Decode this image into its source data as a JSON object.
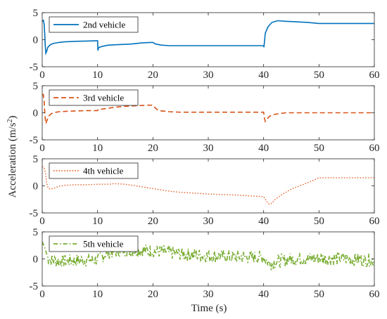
{
  "figure": {
    "xlabel": "Time (s)",
    "ylabel_main": "Acceleration (m/s",
    "ylabel_sup": "2",
    "ylabel_end": ")"
  },
  "chart_data": [
    {
      "type": "line",
      "legend": "2nd vehicle",
      "color": "#0072BD",
      "line_style": "solid",
      "legend_position": "top-left",
      "xlim": [
        0,
        60
      ],
      "ylim": [
        -5,
        5
      ],
      "xticks": [
        "0",
        "10",
        "20",
        "30",
        "40",
        "50",
        "60"
      ],
      "yticks": [
        "-5",
        "0",
        "5"
      ],
      "grid": false,
      "x": [
        0,
        0.2,
        0.35,
        0.45,
        0.55,
        0.65,
        0.8,
        1.0,
        1.5,
        2,
        3,
        4,
        6,
        8,
        10,
        10.05,
        10.15,
        10.3,
        11,
        12,
        14,
        16,
        18,
        19.5,
        20,
        20.5,
        21.5,
        23,
        25,
        30,
        35,
        40,
        40.05,
        40.3,
        40.8,
        41.5,
        42.5,
        44,
        46,
        48,
        50,
        55,
        60
      ],
      "y": [
        3.4,
        3.6,
        2.8,
        1.2,
        -1.0,
        -2.5,
        -2.2,
        -1.4,
        -0.9,
        -0.7,
        -0.5,
        -0.4,
        -0.3,
        -0.25,
        -0.2,
        -2.0,
        -1.6,
        -1.4,
        -1.2,
        -1.0,
        -0.9,
        -0.8,
        -0.6,
        -0.5,
        -0.5,
        -0.8,
        -1.0,
        -1.1,
        -1.1,
        -1.1,
        -1.1,
        -1.1,
        -1.4,
        1.2,
        2.4,
        3.2,
        3.5,
        3.4,
        3.3,
        3.2,
        3.0,
        3.0,
        3.0
      ]
    },
    {
      "type": "line",
      "legend": "3rd vehicle",
      "color": "#D95319",
      "line_style": "dashed",
      "legend_position": "top-left",
      "xlim": [
        0,
        60
      ],
      "ylim": [
        -5,
        5
      ],
      "xticks": [
        "0",
        "10",
        "20",
        "30",
        "40",
        "50",
        "60"
      ],
      "yticks": [
        "-5",
        "0",
        "5"
      ],
      "grid": false,
      "x": [
        0,
        0.2,
        0.35,
        0.5,
        0.65,
        0.8,
        1.0,
        1.2,
        1.6,
        2,
        3,
        5,
        8,
        10,
        10.1,
        11,
        13,
        15,
        17,
        19,
        20,
        20.5,
        21,
        23,
        25,
        30,
        35,
        40,
        40.1,
        40.3,
        40.6,
        41,
        41.5,
        42.5,
        44,
        46,
        48,
        50,
        55,
        60
      ],
      "y": [
        3.3,
        3.4,
        2.0,
        -0.5,
        -2.0,
        -1.6,
        -1.0,
        -0.6,
        -0.2,
        0.0,
        0.2,
        0.3,
        0.4,
        0.4,
        0.6,
        0.7,
        1.0,
        1.2,
        1.3,
        1.4,
        1.4,
        0.8,
        0.4,
        0.2,
        0.1,
        0.1,
        0.1,
        0.1,
        -0.8,
        -1.6,
        -1.2,
        -0.7,
        -0.4,
        -0.2,
        0.0,
        0.0,
        0.0,
        0.0,
        0.0,
        0.0
      ]
    },
    {
      "type": "line",
      "legend": "4th vehicle",
      "color": "#E5662C",
      "line_style": "dotted",
      "legend_position": "top-left",
      "xlim": [
        0,
        60
      ],
      "ylim": [
        -5,
        5
      ],
      "xticks": [
        "0",
        "10",
        "20",
        "30",
        "40",
        "50",
        "60"
      ],
      "yticks": [
        "-5",
        "0",
        "5"
      ],
      "grid": false,
      "x": [
        0,
        0.3,
        0.5,
        0.7,
        0.9,
        1.2,
        1.6,
        2.2,
        3,
        4,
        6,
        8,
        10,
        12,
        13,
        15,
        17,
        20,
        23,
        25,
        30,
        35,
        40,
        40.5,
        41,
        41.5,
        42,
        43,
        44,
        45,
        47,
        49,
        50,
        55,
        60
      ],
      "y": [
        3.6,
        3.4,
        2.8,
        1.5,
        0.0,
        -0.5,
        -0.6,
        -0.4,
        -0.1,
        0.1,
        0.2,
        0.2,
        0.3,
        0.3,
        0.4,
        0.3,
        0.0,
        -0.5,
        -1.0,
        -1.2,
        -1.5,
        -1.7,
        -2.0,
        -2.8,
        -3.4,
        -3.2,
        -2.6,
        -1.8,
        -1.2,
        -0.6,
        0.2,
        1.0,
        1.5,
        1.5,
        1.5
      ]
    },
    {
      "type": "line",
      "legend": "5th vehicle",
      "color": "#77AC30",
      "line_style": "dashdot",
      "legend_position": "top-left",
      "xlim": [
        0,
        60
      ],
      "ylim": [
        -5,
        5
      ],
      "xticks": [
        "0",
        "10",
        "20",
        "30",
        "40",
        "50",
        "60"
      ],
      "yticks": [
        "-5",
        "0",
        "5"
      ],
      "grid": false,
      "x": [
        0,
        0.5,
        1,
        2,
        4,
        6,
        8,
        10,
        12,
        15,
        18,
        20,
        25,
        30,
        35,
        40,
        41,
        43,
        45,
        50,
        55,
        60
      ],
      "y": [
        3.2,
        2.0,
        0.2,
        -0.3,
        -0.4,
        -0.3,
        -0.2,
        -0.1,
        1.2,
        1.6,
        1.6,
        1.5,
        0.9,
        0.6,
        0.4,
        0.3,
        -0.8,
        -0.4,
        0.0,
        0.1,
        0.0,
        -0.3
      ],
      "noise_amplitude": 1.2
    }
  ]
}
